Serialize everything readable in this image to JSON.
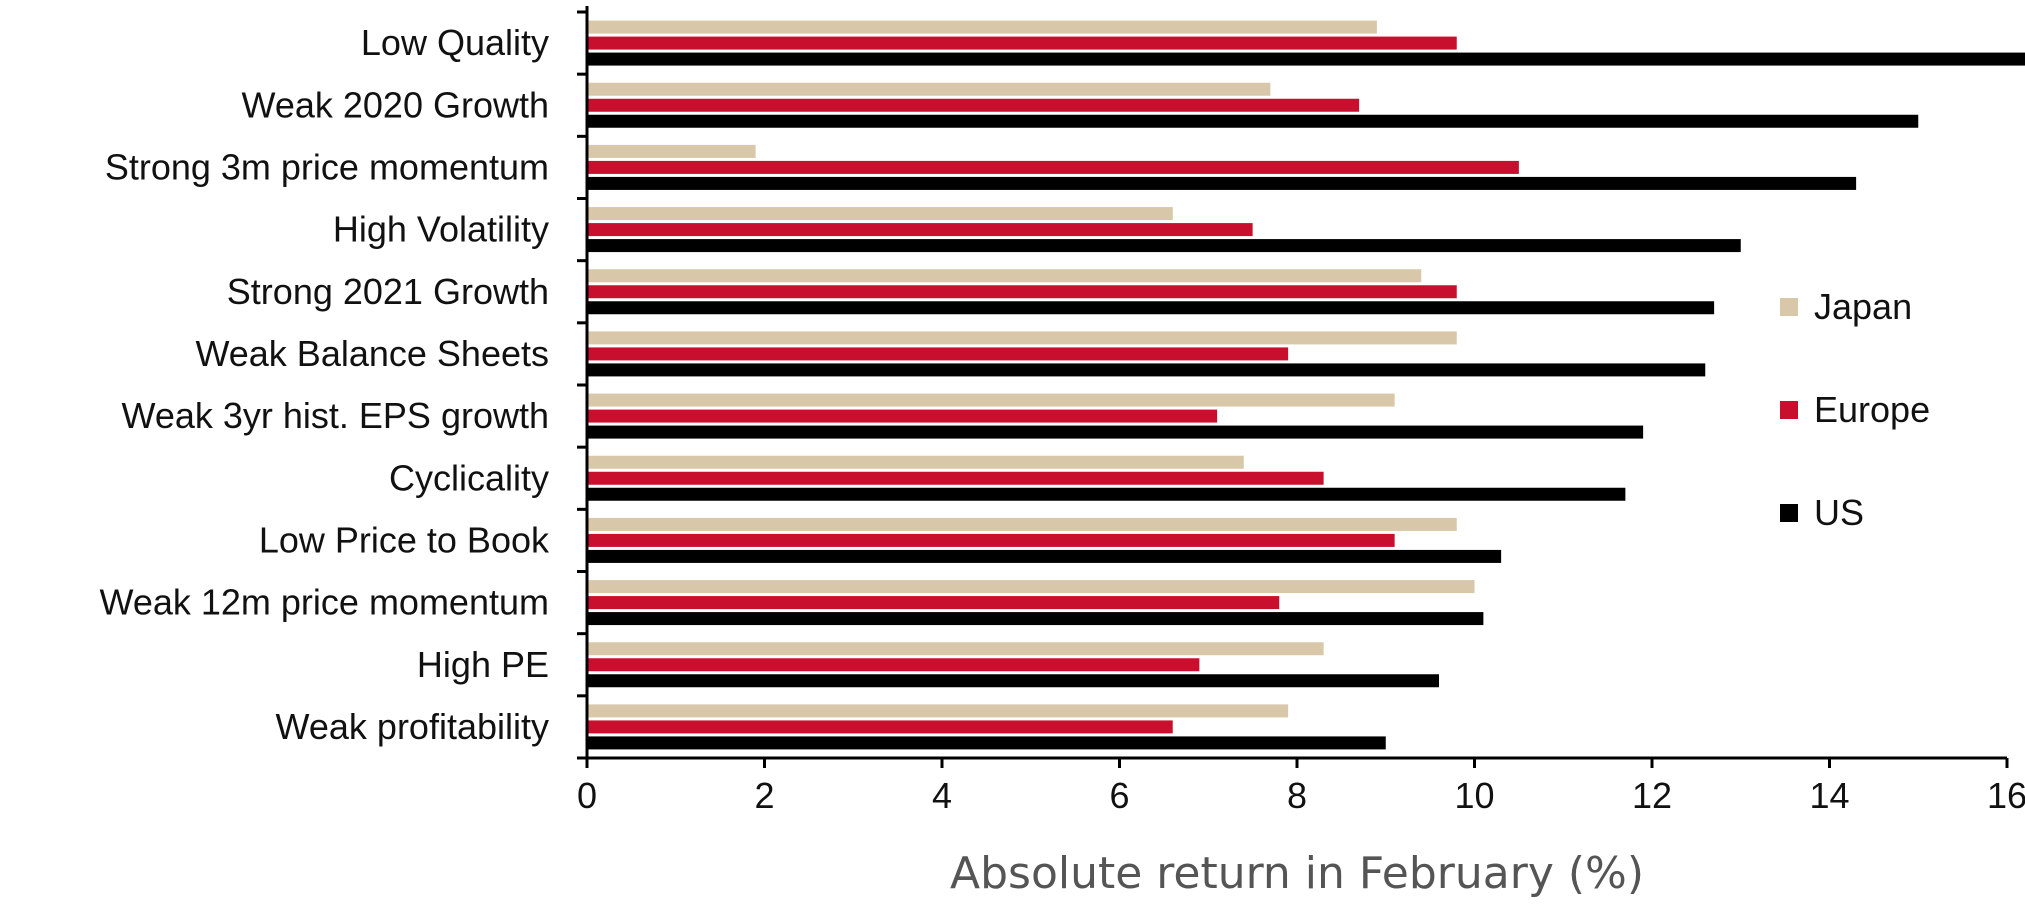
{
  "chart_data": {
    "type": "bar",
    "orientation": "horizontal",
    "categories": [
      "Low Quality",
      "Weak 2020 Growth",
      "Strong 3m price momentum",
      "High Volatility",
      "Strong 2021 Growth",
      "Weak Balance Sheets",
      "Weak 3yr hist. EPS growth",
      "Cyclicality",
      "Low Price to Book",
      "Weak 12m price momentum",
      "High PE",
      "Weak profitability"
    ],
    "series": [
      {
        "name": "Japan",
        "color": "#d8c7a8",
        "values": [
          8.9,
          7.7,
          1.9,
          6.6,
          9.4,
          9.8,
          9.1,
          7.4,
          9.8,
          10.0,
          8.3,
          7.9
        ]
      },
      {
        "name": "Europe",
        "color": "#c8102e",
        "values": [
          9.8,
          8.7,
          10.5,
          7.5,
          9.8,
          7.9,
          7.1,
          8.3,
          9.1,
          7.8,
          6.9,
          6.6
        ]
      },
      {
        "name": "US",
        "color": "#000000",
        "values": [
          16.7,
          15.0,
          14.3,
          13.0,
          12.7,
          12.6,
          11.9,
          11.7,
          10.3,
          10.1,
          9.6,
          9.0
        ]
      }
    ],
    "xlim": [
      0,
      16
    ],
    "xticks": [
      "0",
      "2",
      "4",
      "6",
      "8",
      "10",
      "12",
      "14",
      "16"
    ],
    "xlabel": "Absolute return in February (%)",
    "ylabel": "",
    "title": "",
    "grid": false,
    "legend_position": "right"
  }
}
